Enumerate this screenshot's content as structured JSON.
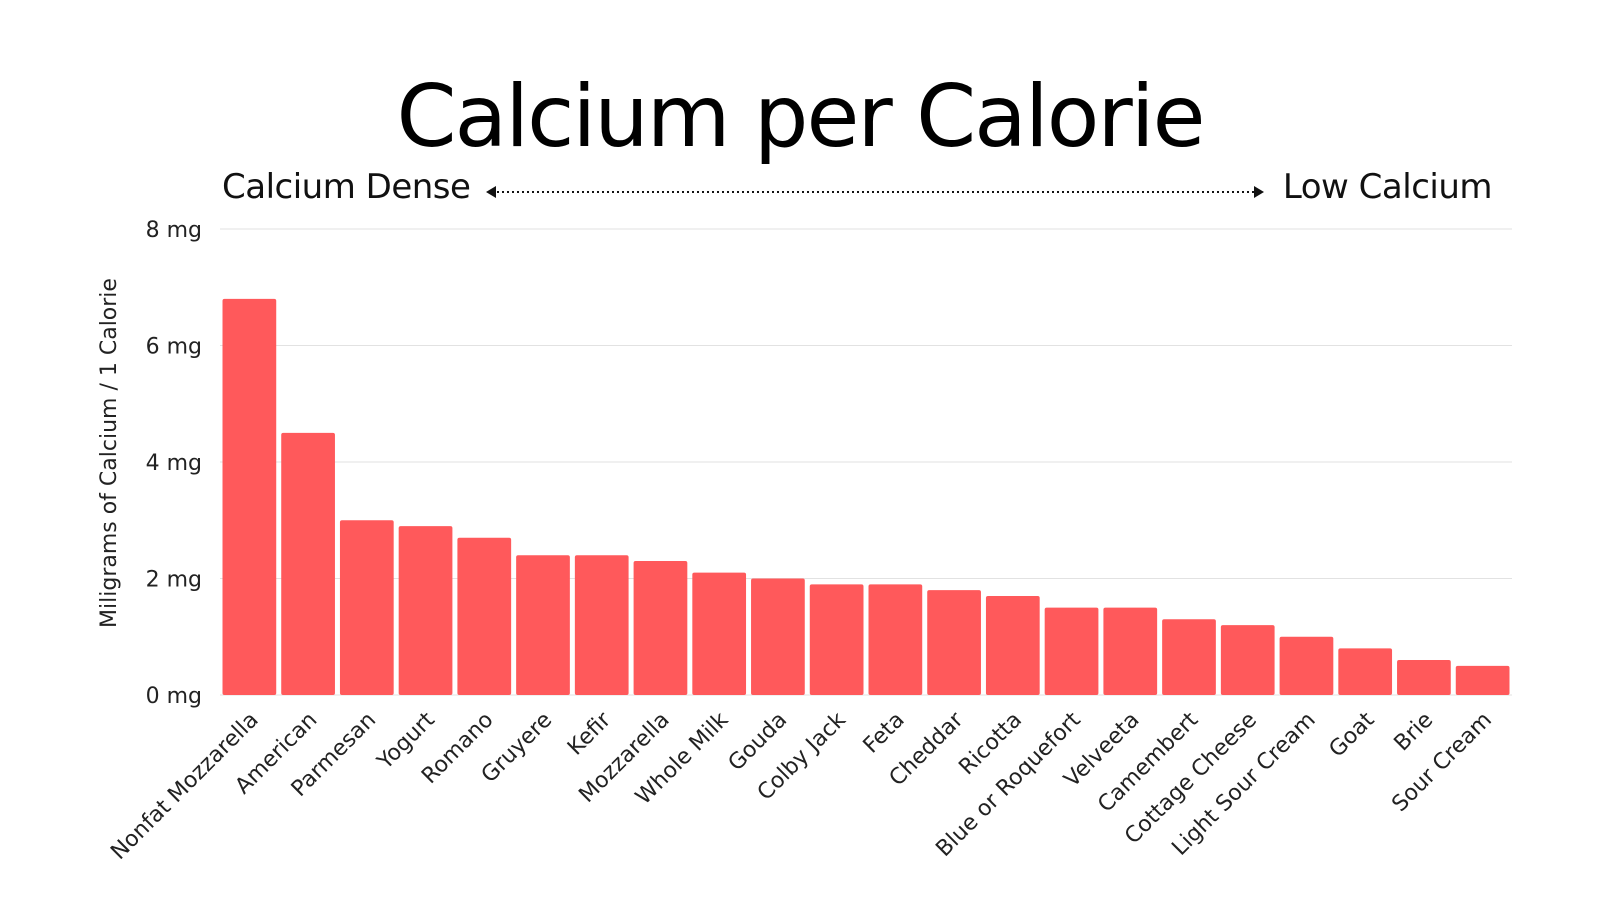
{
  "chart_data": {
    "type": "bar",
    "title": "Calcium per Calorie",
    "range_left_label": "Calcium Dense",
    "range_right_label": "Low Calcium",
    "ylabel": "Miligrams of Calcium / 1 Calorie",
    "xlabel": "",
    "ylim": [
      0,
      8
    ],
    "yticks": [
      0,
      2,
      4,
      6,
      8
    ],
    "ytick_labels": [
      "0 mg",
      "2 mg",
      "4 mg",
      "6 mg",
      "8 mg"
    ],
    "grid": true,
    "bar_color": "#ff595b",
    "categories": [
      "Nonfat Mozzarella",
      "American",
      "Parmesan",
      "Yogurt",
      "Romano",
      "Gruyere",
      "Kefir",
      "Mozzarella",
      "Whole Milk",
      "Gouda",
      "Colby Jack",
      "Feta",
      "Cheddar",
      "Ricotta",
      "Blue or Roquefort",
      "Velveeta",
      "Camembert",
      "Cottage Cheese",
      "Light Sour Cream",
      "Goat",
      "Brie",
      "Sour Cream"
    ],
    "values": [
      6.8,
      4.5,
      3.0,
      2.9,
      2.7,
      2.4,
      2.4,
      2.3,
      2.1,
      2.0,
      1.9,
      1.9,
      1.8,
      1.7,
      1.5,
      1.5,
      1.3,
      1.2,
      1.0,
      0.8,
      0.6,
      0.5
    ]
  }
}
